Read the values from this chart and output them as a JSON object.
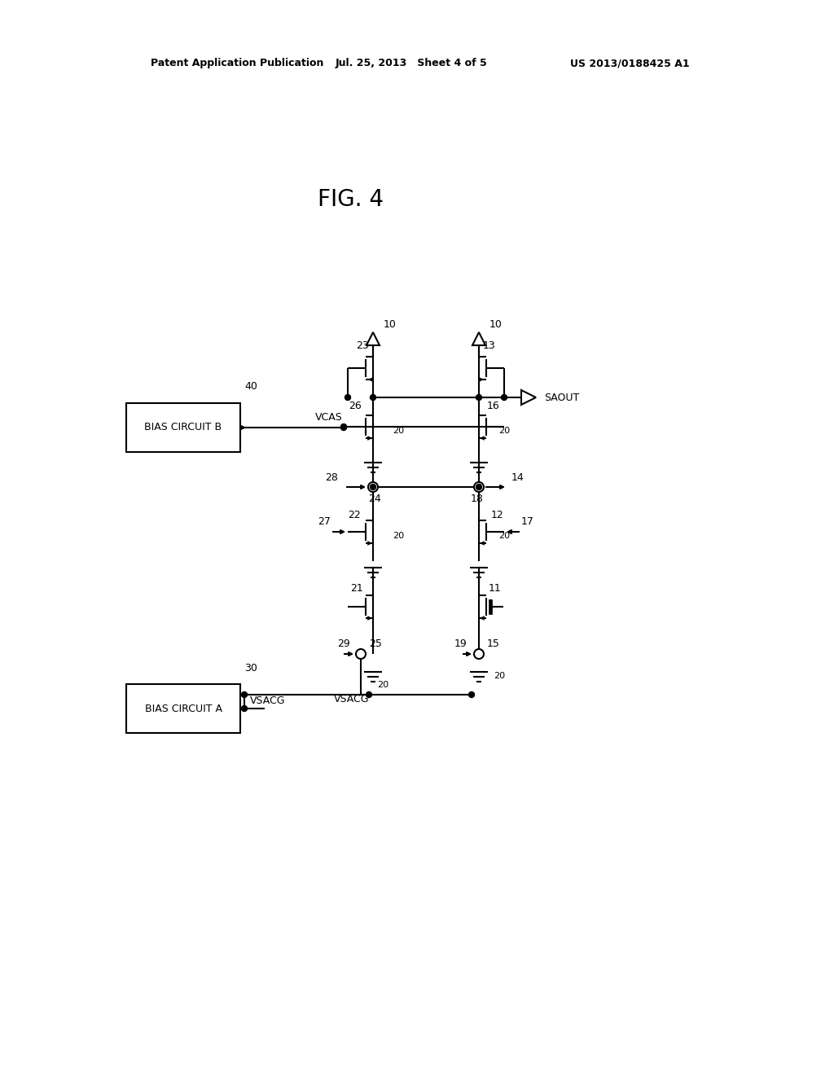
{
  "header_left": "Patent Application Publication",
  "header_mid": "Jul. 25, 2013   Sheet 4 of 5",
  "header_right": "US 2013/0188425 A1",
  "fig_label": "FIG. 4",
  "bias_b_label": "BIAS CIRCUIT B",
  "bias_a_label": "BIAS CIRCUIT A",
  "saout_label": "SAOUT",
  "vcas_label": "VCAS",
  "vsacg_label": "VSACG",
  "bg": "#ffffff",
  "lc": "black",
  "lw": 1.5
}
